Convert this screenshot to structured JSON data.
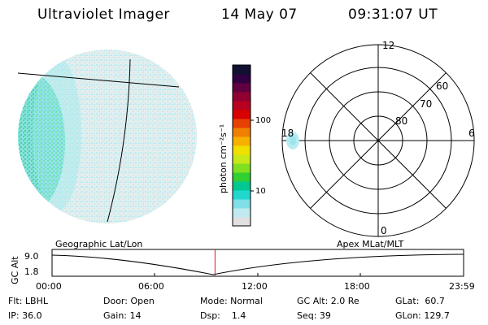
{
  "header": {
    "instrument": "Ultraviolet Imager",
    "date": "14 May 07",
    "time": "09:31:07 UT"
  },
  "colorbar": {
    "unit_label": "photon cm⁻²s⁻¹",
    "ticks": [
      "100",
      "10"
    ],
    "colors": [
      "#e0e0e0",
      "#c0eaf0",
      "#80e0e8",
      "#20d8d0",
      "#00c890",
      "#30d030",
      "#80e020",
      "#c8e818",
      "#f0e000",
      "#f8b000",
      "#f08000",
      "#e84000",
      "#d80000",
      "#b80020",
      "#900030",
      "#600040",
      "#300040",
      "#101030"
    ]
  },
  "polar": {
    "mlt_labels": [
      "12",
      "18",
      "6",
      "0"
    ],
    "lat_labels": [
      "60",
      "70",
      "80"
    ]
  },
  "timeline": {
    "left_caption": "Geographic Lat/Lon",
    "right_caption": "Apex MLat/MLT",
    "y_label": "GC Alt",
    "y_ticks": [
      "9.0",
      "1.8"
    ],
    "x_ticks": [
      "00:00",
      "06:00",
      "12:00",
      "18:00",
      "23:59"
    ],
    "current_time_fraction": 0.396,
    "marker_color": "#d02020"
  },
  "info": {
    "flt": "Flt: LBHL",
    "ip": "IP: 36.0",
    "door": "Door: Open",
    "gain": "Gain: 14",
    "mode": "Mode: Normal",
    "dsp": "Dsp:    1.4",
    "gcalt": "GC Alt: 2.0 Re",
    "seq": "Seq: 39",
    "glat": "GLat:  60.7",
    "glon": "GLon: 129.7"
  }
}
